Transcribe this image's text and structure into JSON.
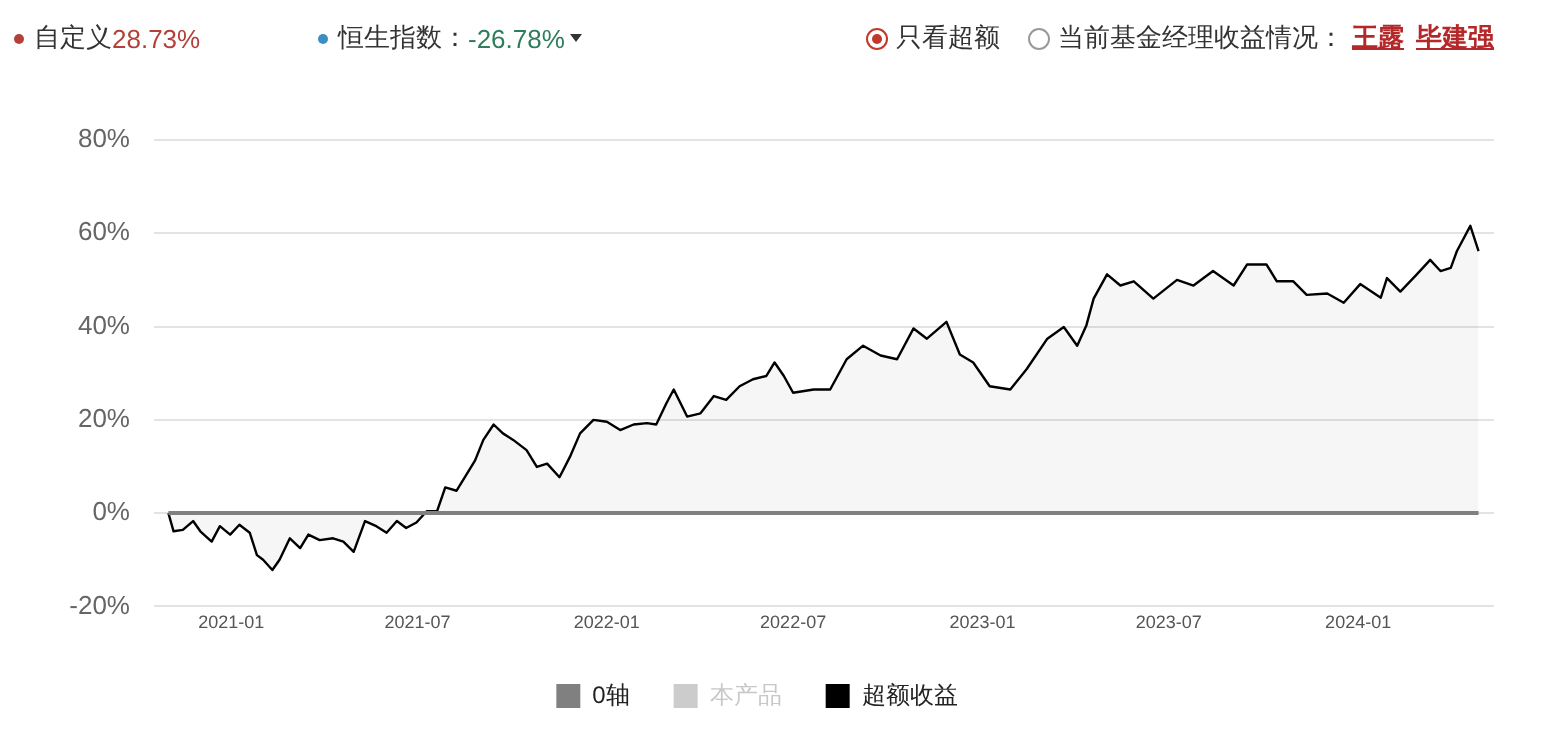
{
  "chart_data": {
    "type": "line",
    "annotations": [
      "自定义",
      "28.73%",
      "恒生指数：",
      "-26.78%",
      "只看超额",
      "当前基金经理收益情况：",
      "王露",
      "毕建强"
    ],
    "xlim": [
      "2020-10-18",
      "2024-05-12"
    ],
    "xticks": [
      "2021-01",
      "2021-07",
      "2022-01",
      "2022-07",
      "2023-01",
      "2023-07",
      "2024-01"
    ],
    "ylim": [
      -20,
      80
    ],
    "yticks": [
      {
        "value": -20,
        "label": "-20%"
      },
      {
        "value": 0,
        "label": "0%"
      },
      {
        "value": 20,
        "label": "20%"
      },
      {
        "value": 40,
        "label": "40%"
      },
      {
        "value": 60,
        "label": "60%"
      },
      {
        "value": 80,
        "label": "80%"
      }
    ],
    "grid": "y",
    "legend": "bottom",
    "marker": "none",
    "series": [
      {
        "name": "0轴",
        "color": "#808080",
        "x": [
          "2020-11-01",
          "2024-04-27"
        ],
        "values": [
          0,
          0
        ]
      },
      {
        "name": "本产品",
        "color": "#cccccc"
      },
      {
        "name": "超额收益",
        "type": "area",
        "color": "#000000",
        "x": [
          "2020-11-01",
          "2020-11-06",
          "2020-11-15",
          "2020-11-25",
          "2020-12-02",
          "2020-12-13",
          "2020-12-21",
          "2020-12-31",
          "2021-01-09",
          "2021-01-19",
          "2021-01-26",
          "2021-02-01",
          "2021-02-10",
          "2021-02-17",
          "2021-02-27",
          "2021-03-09",
          "2021-03-17",
          "2021-03-28",
          "2021-04-10",
          "2021-04-20",
          "2021-04-30",
          "2021-05-11",
          "2021-05-22",
          "2021-06-01",
          "2021-06-11",
          "2021-06-20",
          "2021-06-30",
          "2021-07-10",
          "2021-07-20",
          "2021-07-28",
          "2021-08-08",
          "2021-08-18",
          "2021-08-26",
          "2021-09-03",
          "2021-09-13",
          "2021-09-22",
          "2021-10-02",
          "2021-10-15",
          "2021-10-25",
          "2021-11-04",
          "2021-11-16",
          "2021-11-26",
          "2021-12-06",
          "2021-12-19",
          "2022-01-01",
          "2022-01-14",
          "2022-01-27",
          "2022-02-09",
          "2022-02-18",
          "2022-02-28",
          "2022-03-07",
          "2022-03-20",
          "2022-04-02",
          "2022-04-15",
          "2022-04-27",
          "2022-05-10",
          "2022-05-23",
          "2022-06-05",
          "2022-06-13",
          "2022-06-22",
          "2022-07-01",
          "2022-07-21",
          "2022-08-06",
          "2022-08-22",
          "2022-09-07",
          "2022-09-24",
          "2022-10-10",
          "2022-10-26",
          "2022-11-08",
          "2022-11-27",
          "2022-12-10",
          "2022-12-23",
          "2023-01-08",
          "2023-01-28",
          "2023-02-13",
          "2023-03-05",
          "2023-03-21",
          "2023-04-03",
          "2023-04-12",
          "2023-04-19",
          "2023-05-02",
          "2023-05-15",
          "2023-05-28",
          "2023-06-16",
          "2023-07-09",
          "2023-07-25",
          "2023-08-13",
          "2023-09-02",
          "2023-09-15",
          "2023-10-04",
          "2023-10-14",
          "2023-10-30",
          "2023-11-12",
          "2023-12-02",
          "2023-12-18",
          "2024-01-03",
          "2024-01-23",
          "2024-01-29",
          "2024-02-11",
          "2024-02-27",
          "2024-03-11",
          "2024-03-21",
          "2024-03-31",
          "2024-04-06",
          "2024-04-19",
          "2024-04-27"
        ],
        "values": [
          0,
          -3.9,
          -3.6,
          -1.7,
          -3.9,
          -6.1,
          -2.8,
          -4.6,
          -2.5,
          -4.2,
          -9,
          -10,
          -12.2,
          -10,
          -5.4,
          -7.5,
          -4.6,
          -5.8,
          -5.4,
          -6.1,
          -8.3,
          -1.7,
          -2.8,
          -4.2,
          -1.7,
          -3.2,
          -2,
          0.4,
          0.4,
          5.5,
          4.8,
          8.4,
          11.3,
          15.7,
          19,
          17.1,
          15.7,
          13.5,
          9.9,
          10.6,
          7.7,
          12,
          17.1,
          20,
          19.6,
          17.8,
          19,
          19.3,
          19,
          23.6,
          26.5,
          20.7,
          21.4,
          25.1,
          24.3,
          27.2,
          28.7,
          29.4,
          32.3,
          29.4,
          25.8,
          26.5,
          26.5,
          33,
          35.9,
          33.8,
          33,
          39.6,
          37.4,
          41,
          34,
          32.3,
          27.2,
          26.5,
          30.9,
          37.4,
          39.9,
          35.9,
          40.3,
          46,
          51.2,
          48.8,
          49.7,
          46,
          50,
          48.8,
          51.9,
          48.8,
          53.3,
          53.3,
          49.7,
          49.7,
          46.8,
          47.1,
          45.1,
          49.1,
          46.2,
          50.4,
          47.5,
          51.2,
          54.3,
          51.9,
          52.6,
          56.2,
          61.6,
          56.2
        ]
      }
    ]
  }
}
